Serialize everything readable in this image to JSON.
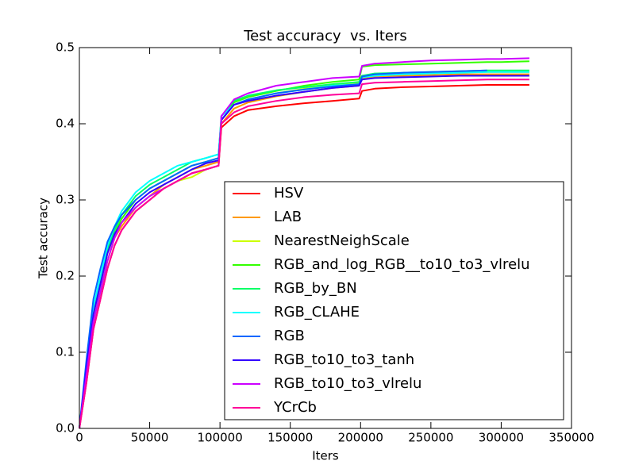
{
  "chart_data": {
    "type": "line",
    "title": "Test accuracy  vs. Iters",
    "xlabel": "Iters",
    "ylabel": "Test accuracy",
    "x": [
      0,
      5000,
      10000,
      15000,
      20000,
      25000,
      30000,
      40000,
      50000,
      60000,
      70000,
      80000,
      90000,
      99000,
      101000,
      110000,
      120000,
      140000,
      160000,
      180000,
      199000,
      201000,
      210000,
      230000,
      250000,
      270000,
      290000,
      300000,
      320000
    ],
    "series": [
      {
        "name": "HSV",
        "color": "#ff0000",
        "values": [
          0,
          0.06,
          0.13,
          0.17,
          0.21,
          0.24,
          0.26,
          0.285,
          0.3,
          0.315,
          0.325,
          0.335,
          0.34,
          0.345,
          0.395,
          0.41,
          0.418,
          0.423,
          0.427,
          0.43,
          0.433,
          0.443,
          0.446,
          0.448,
          0.449,
          0.45,
          0.451,
          0.451,
          0.451
        ]
      },
      {
        "name": "LAB",
        "color": "#ff9900",
        "values": [
          0,
          0.07,
          0.14,
          0.18,
          0.22,
          0.25,
          0.265,
          0.29,
          0.305,
          0.32,
          0.33,
          0.34,
          0.345,
          0.35,
          0.4,
          0.42,
          0.428,
          0.436,
          0.442,
          0.447,
          0.45,
          0.46,
          0.462,
          0.463,
          0.464,
          0.465,
          0.465,
          0.465,
          0.465
        ]
      },
      {
        "name": "NearestNeighScale",
        "color": "#ccff00",
        "values": [
          0,
          0.07,
          0.14,
          0.18,
          0.22,
          0.25,
          0.27,
          0.29,
          0.305,
          0.315,
          0.325,
          0.33,
          0.34,
          0.345,
          0.405,
          0.425,
          0.432,
          0.44,
          0.446,
          0.45,
          0.453,
          0.463,
          0.465,
          0.466,
          0.467,
          0.468,
          0.468,
          0.468,
          0.468
        ]
      },
      {
        "name": "RGB_and_log_RGB__to10_to3_vlrelu",
        "color": "#33ff00",
        "values": [
          0,
          0.08,
          0.15,
          0.19,
          0.23,
          0.255,
          0.275,
          0.3,
          0.315,
          0.325,
          0.335,
          0.345,
          0.35,
          0.355,
          0.41,
          0.428,
          0.435,
          0.443,
          0.45,
          0.455,
          0.458,
          0.475,
          0.477,
          0.478,
          0.479,
          0.48,
          0.481,
          0.481,
          0.482
        ]
      },
      {
        "name": "RGB_by_BN",
        "color": "#00ff66",
        "values": [
          0,
          0.08,
          0.155,
          0.195,
          0.235,
          0.26,
          0.28,
          0.305,
          0.32,
          0.33,
          0.34,
          0.35,
          0.355,
          0.36,
          0.41,
          0.43,
          0.437,
          0.444,
          0.448,
          0.452,
          0.455,
          0.463,
          0.466,
          0.467,
          0.468,
          0.469,
          0.47,
          0.47,
          0.47
        ]
      },
      {
        "name": "RGB_CLAHE",
        "color": "#00ffff",
        "values": [
          0,
          0.085,
          0.16,
          0.2,
          0.24,
          0.265,
          0.285,
          0.31,
          0.325,
          0.335,
          0.345,
          0.35,
          0.355,
          0.36,
          0.41,
          0.425,
          0.432,
          0.44,
          0.445,
          0.45,
          0.452,
          0.461,
          0.463,
          0.465,
          0.466,
          0.467,
          0.468,
          0.468,
          0.468
        ]
      },
      {
        "name": "RGB",
        "color": "#0066ff",
        "values": [
          0,
          0.09,
          0.17,
          0.21,
          0.245,
          0.265,
          0.28,
          0.3,
          0.315,
          0.325,
          0.335,
          0.345,
          0.35,
          0.355,
          0.405,
          0.425,
          0.432,
          0.44,
          0.445,
          0.449,
          0.452,
          0.462,
          0.465,
          0.467,
          0.468,
          0.469,
          0.47,
          null,
          null
        ]
      },
      {
        "name": "RGB_to10_to3_tanh",
        "color": "#3300ff",
        "values": [
          0,
          0.08,
          0.15,
          0.19,
          0.23,
          0.255,
          0.27,
          0.295,
          0.31,
          0.32,
          0.33,
          0.34,
          0.348,
          0.352,
          0.405,
          0.425,
          0.43,
          0.437,
          0.442,
          0.447,
          0.45,
          0.458,
          0.46,
          0.461,
          0.462,
          0.463,
          0.463,
          0.463,
          0.463
        ]
      },
      {
        "name": "RGB_to10_to3_vlrelu",
        "color": "#cc00ff",
        "values": [
          0,
          0.07,
          0.14,
          0.18,
          0.22,
          0.25,
          0.27,
          0.29,
          0.305,
          0.315,
          0.325,
          0.335,
          0.34,
          0.345,
          0.41,
          0.432,
          0.44,
          0.45,
          0.455,
          0.46,
          0.462,
          0.476,
          0.479,
          0.481,
          0.483,
          0.484,
          0.485,
          0.485,
          0.486
        ]
      },
      {
        "name": "YCrCb",
        "color": "#ff0099",
        "values": [
          0,
          0.06,
          0.13,
          0.17,
          0.21,
          0.24,
          0.26,
          0.285,
          0.3,
          0.315,
          0.325,
          0.335,
          0.34,
          0.345,
          0.4,
          0.415,
          0.423,
          0.43,
          0.435,
          0.438,
          0.44,
          0.452,
          0.454,
          0.455,
          0.456,
          0.457,
          0.458,
          0.458,
          0.458
        ]
      }
    ],
    "xlim": [
      0,
      350000
    ],
    "xticks": [
      0,
      50000,
      100000,
      150000,
      200000,
      250000,
      300000,
      350000
    ],
    "ylim": [
      0,
      0.5
    ],
    "yticks": [
      {
        "value": 0,
        "label": "0.0"
      },
      0.1,
      0.2,
      0.3,
      0.4,
      0.5
    ],
    "grid": false,
    "legend": "lower right"
  }
}
